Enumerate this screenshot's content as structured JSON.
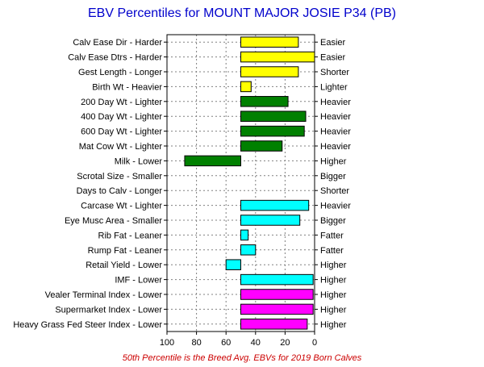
{
  "chart_data": {
    "type": "bar",
    "orientation": "horizontal",
    "title": "EBV Percentiles for MOUNT MAJOR JOSIE P34 (PB)",
    "footnote": "50th Percentile is the Breed Avg. EBVs for 2019 Born Calves",
    "xlim": [
      100,
      0
    ],
    "xticks": [
      100,
      80,
      60,
      40,
      20,
      0
    ],
    "baseline": 50,
    "grid": true,
    "colors": {
      "yellow": "#ffff00",
      "green": "#008000",
      "cyan": "#00ffff",
      "magenta": "#ff00ff"
    },
    "rows": [
      {
        "left": "Calv Ease Dir - Harder",
        "right": "Easier",
        "value": 11,
        "color": "yellow"
      },
      {
        "left": "Calv Ease Dtrs - Harder",
        "right": "Easier",
        "value": 0,
        "color": "yellow"
      },
      {
        "left": "Gest Length - Longer",
        "right": "Shorter",
        "value": 11,
        "color": "yellow"
      },
      {
        "left": "Birth Wt - Heavier",
        "right": "Lighter",
        "value": 43,
        "color": "yellow"
      },
      {
        "left": "200 Day Wt - Lighter",
        "right": "Heavier",
        "value": 18,
        "color": "green"
      },
      {
        "left": "400 Day Wt - Lighter",
        "right": "Heavier",
        "value": 6,
        "color": "green"
      },
      {
        "left": "600 Day Wt - Lighter",
        "right": "Heavier",
        "value": 7,
        "color": "green"
      },
      {
        "left": "Mat Cow Wt - Lighter",
        "right": "Heavier",
        "value": 22,
        "color": "green"
      },
      {
        "left": "Milk - Lower",
        "right": "Higher",
        "value": 88,
        "color": "green"
      },
      {
        "left": "Scrotal Size - Smaller",
        "right": "Bigger",
        "value": null,
        "color": "green"
      },
      {
        "left": "Days to Calv - Longer",
        "right": "Shorter",
        "value": null,
        "color": "green"
      },
      {
        "left": "Carcase Wt - Lighter",
        "right": "Heavier",
        "value": 4,
        "color": "cyan"
      },
      {
        "left": "Eye Musc Area - Smaller",
        "right": "Bigger",
        "value": 10,
        "color": "cyan"
      },
      {
        "left": "Rib Fat - Leaner",
        "right": "Fatter",
        "value": 45,
        "color": "cyan"
      },
      {
        "left": "Rump Fat - Leaner",
        "right": "Fatter",
        "value": 40,
        "color": "cyan"
      },
      {
        "left": "Retail Yield - Lower",
        "right": "Higher",
        "value": 60,
        "color": "cyan"
      },
      {
        "left": "IMF - Lower",
        "right": "Higher",
        "value": 1,
        "color": "cyan"
      },
      {
        "left": "Vealer Terminal Index - Lower",
        "right": "Higher",
        "value": 1,
        "color": "magenta"
      },
      {
        "left": "Supermarket Index - Lower",
        "right": "Higher",
        "value": 1,
        "color": "magenta"
      },
      {
        "left": "Heavy Grass Fed Steer Index - Lower",
        "right": "Higher",
        "value": 5,
        "color": "magenta"
      }
    ]
  }
}
